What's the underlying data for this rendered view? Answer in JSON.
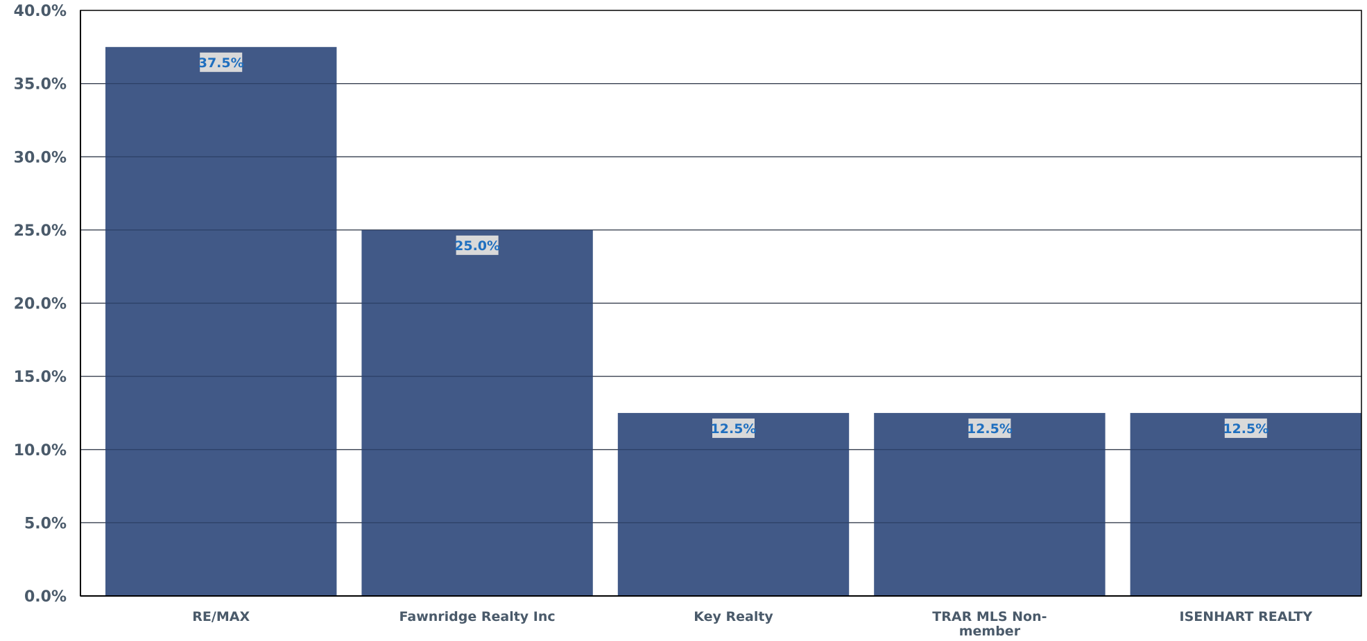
{
  "chart_data": {
    "type": "bar",
    "title": "",
    "xlabel": "",
    "ylabel": "",
    "categories": [
      [
        "RE/MAX"
      ],
      [
        "Fawnridge Realty Inc"
      ],
      [
        "Key Realty"
      ],
      [
        "TRAR MLS Non-",
        "member"
      ],
      [
        "ISENHART REALTY"
      ]
    ],
    "values": [
      37.5,
      25.0,
      12.5,
      12.5,
      12.5
    ],
    "data_labels": [
      "37.5%",
      "25.0%",
      "12.5%",
      "12.5%",
      "12.5%"
    ],
    "ylim": [
      0,
      40
    ],
    "yticks": [
      0,
      5,
      10,
      15,
      20,
      25,
      30,
      35,
      40
    ],
    "ytick_labels": [
      "0.0%",
      "5.0%",
      "10.0%",
      "15.0%",
      "20.0%",
      "25.0%",
      "30.0%",
      "35.0%",
      "40.0%"
    ],
    "grid": true,
    "legend": "none",
    "colors": {
      "bar": "#415987",
      "grid": "#4d4d4d",
      "axis": "#000000",
      "tick_text": "#4a5a6a",
      "label_bg": "#d9d9d9",
      "label_text": "#1f6fbf"
    }
  }
}
